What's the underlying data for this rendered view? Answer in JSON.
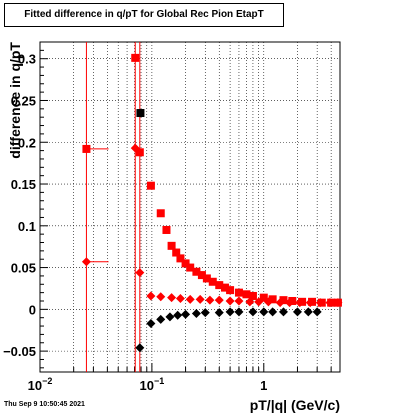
{
  "chart_data": {
    "type": "scatter",
    "title": "Fitted difference in q/pT for Global Rec Pion EtapT",
    "xlabel": "pT/|q| (GeV/c)",
    "ylabel": "difference in q/pT",
    "x_scale": "log",
    "xlim": [
      0.01,
      4.8
    ],
    "ylim": [
      -0.075,
      0.32
    ],
    "grid": true,
    "x_ticks": [
      {
        "value": 0.01,
        "label": "10",
        "exp": "−2"
      },
      {
        "value": 0.1,
        "label": "10",
        "exp": "−1"
      },
      {
        "value": 1,
        "label": "1",
        "exp": ""
      }
    ],
    "y_ticks": [
      {
        "value": -0.05,
        "label": "−0.05"
      },
      {
        "value": 0,
        "label": "0"
      },
      {
        "value": 0.05,
        "label": "0.05"
      },
      {
        "value": 0.1,
        "label": "0.1"
      },
      {
        "value": 0.15,
        "label": "0.15"
      },
      {
        "value": 0.2,
        "label": "0.2"
      },
      {
        "value": 0.25,
        "label": "0.25"
      },
      {
        "value": 0.3,
        "label": "0.3"
      }
    ],
    "series": [
      {
        "color": "#000000",
        "marker": "square",
        "points": [
          {
            "x": 0.079,
            "y": 0.235
          }
        ]
      },
      {
        "color": "#000000",
        "marker": "diamond",
        "points": [
          {
            "x": 0.078,
            "y": -0.046
          },
          {
            "x": 0.098,
            "y": -0.017
          },
          {
            "x": 0.12,
            "y": -0.012
          },
          {
            "x": 0.145,
            "y": -0.009
          },
          {
            "x": 0.17,
            "y": -0.007
          },
          {
            "x": 0.2,
            "y": -0.006
          },
          {
            "x": 0.25,
            "y": -0.005
          },
          {
            "x": 0.3,
            "y": -0.004
          },
          {
            "x": 0.4,
            "y": -0.004
          },
          {
            "x": 0.5,
            "y": -0.003
          },
          {
            "x": 0.6,
            "y": -0.003
          },
          {
            "x": 0.8,
            "y": -0.003
          },
          {
            "x": 1.0,
            "y": -0.003
          },
          {
            "x": 1.2,
            "y": -0.003
          },
          {
            "x": 1.5,
            "y": -0.003
          },
          {
            "x": 2.0,
            "y": -0.003
          },
          {
            "x": 2.5,
            "y": -0.003
          },
          {
            "x": 3.0,
            "y": -0.003
          }
        ]
      },
      {
        "color": "#ff0000",
        "marker": "square",
        "points": [
          {
            "x": 0.026,
            "y": 0.192,
            "xerr": [
              0.0005,
              0.015
            ]
          },
          {
            "x": 0.071,
            "y": 0.301,
            "xerr": [
              0.003,
              0.002
            ]
          },
          {
            "x": 0.078,
            "y": 0.188
          },
          {
            "x": 0.098,
            "y": 0.148
          },
          {
            "x": 0.12,
            "y": 0.115
          },
          {
            "x": 0.135,
            "y": 0.095
          },
          {
            "x": 0.15,
            "y": 0.076
          },
          {
            "x": 0.165,
            "y": 0.068
          },
          {
            "x": 0.18,
            "y": 0.061
          },
          {
            "x": 0.2,
            "y": 0.055
          },
          {
            "x": 0.22,
            "y": 0.05
          },
          {
            "x": 0.25,
            "y": 0.045
          },
          {
            "x": 0.28,
            "y": 0.041
          },
          {
            "x": 0.31,
            "y": 0.037
          },
          {
            "x": 0.35,
            "y": 0.033
          },
          {
            "x": 0.4,
            "y": 0.029
          },
          {
            "x": 0.45,
            "y": 0.026
          },
          {
            "x": 0.5,
            "y": 0.023
          },
          {
            "x": 0.6,
            "y": 0.02
          },
          {
            "x": 0.7,
            "y": 0.018
          },
          {
            "x": 0.8,
            "y": 0.016
          },
          {
            "x": 1.0,
            "y": 0.014
          },
          {
            "x": 1.2,
            "y": 0.012
          },
          {
            "x": 1.5,
            "y": 0.011
          },
          {
            "x": 1.8,
            "y": 0.01
          },
          {
            "x": 2.2,
            "y": 0.009
          },
          {
            "x": 2.7,
            "y": 0.009
          },
          {
            "x": 3.3,
            "y": 0.008
          },
          {
            "x": 4.0,
            "y": 0.008
          },
          {
            "x": 4.6,
            "y": 0.008
          }
        ]
      },
      {
        "color": "#ff0000",
        "marker": "diamond",
        "points": [
          {
            "x": 0.026,
            "y": 0.057,
            "xerr": [
              0.0005,
              0.015
            ]
          },
          {
            "x": 0.071,
            "y": 0.193,
            "xerr": [
              0.003,
              0.002
            ]
          },
          {
            "x": 0.078,
            "y": 0.044
          },
          {
            "x": 0.098,
            "y": 0.016
          },
          {
            "x": 0.12,
            "y": 0.015
          },
          {
            "x": 0.15,
            "y": 0.014
          },
          {
            "x": 0.18,
            "y": 0.013
          },
          {
            "x": 0.22,
            "y": 0.012
          },
          {
            "x": 0.27,
            "y": 0.012
          },
          {
            "x": 0.33,
            "y": 0.011
          },
          {
            "x": 0.4,
            "y": 0.011
          },
          {
            "x": 0.5,
            "y": 0.01
          },
          {
            "x": 0.6,
            "y": 0.01
          },
          {
            "x": 0.75,
            "y": 0.009
          },
          {
            "x": 0.9,
            "y": 0.009
          },
          {
            "x": 1.1,
            "y": 0.009
          },
          {
            "x": 1.4,
            "y": 0.008
          },
          {
            "x": 1.7,
            "y": 0.008
          },
          {
            "x": 2.1,
            "y": 0.008
          },
          {
            "x": 2.6,
            "y": 0.008
          },
          {
            "x": 3.2,
            "y": 0.008
          },
          {
            "x": 3.9,
            "y": 0.008
          },
          {
            "x": 4.6,
            "y": 0.008
          }
        ]
      }
    ]
  },
  "footer": {
    "timestamp": "Thu Sep  9 10:50:45 2021"
  }
}
